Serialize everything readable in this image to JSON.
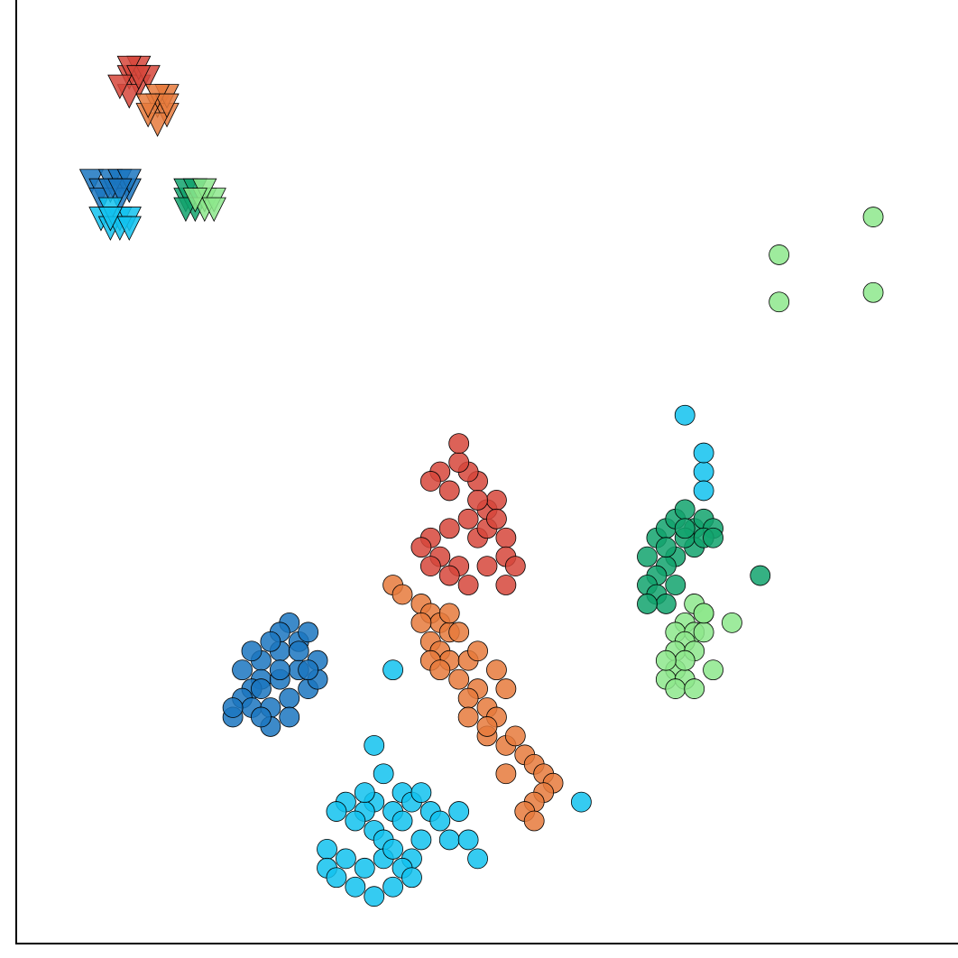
{
  "chart_data": {
    "type": "scatter",
    "title": "",
    "xlabel": "",
    "ylabel": "",
    "xlim": [
      0,
      100
    ],
    "ylim": [
      0,
      100
    ],
    "grid": false,
    "legend": "none",
    "ticks": "none",
    "series": [
      {
        "color": "#d6473b",
        "marker": "circle",
        "cluster_center": [
          47,
          42
        ],
        "spread": [
          3,
          3
        ],
        "points": [
          [
            45,
            41
          ],
          [
            47,
            40
          ],
          [
            49,
            43
          ],
          [
            50,
            44
          ],
          [
            52,
            43
          ],
          [
            48,
            45
          ],
          [
            46,
            44
          ],
          [
            44,
            43
          ],
          [
            50,
            46
          ],
          [
            51,
            47
          ],
          [
            49,
            49
          ],
          [
            48,
            50
          ],
          [
            47,
            51
          ],
          [
            45,
            50
          ],
          [
            44,
            49
          ],
          [
            46,
            48
          ],
          [
            49,
            47
          ],
          [
            51,
            45
          ],
          [
            52,
            41
          ],
          [
            50,
            40
          ],
          [
            48,
            38
          ],
          [
            46,
            39
          ],
          [
            44,
            40
          ],
          [
            43,
            42
          ],
          [
            47,
            53
          ],
          [
            53,
            40
          ],
          [
            52,
            38
          ]
        ]
      },
      {
        "color": "#e67a3c",
        "marker": "circle",
        "cluster_center": [
          47,
          24
        ],
        "spread": [
          6,
          6
        ],
        "points": [
          [
            40,
            38
          ],
          [
            41,
            37
          ],
          [
            43,
            36
          ],
          [
            44,
            35
          ],
          [
            45,
            34
          ],
          [
            46,
            33
          ],
          [
            44,
            32
          ],
          [
            45,
            31
          ],
          [
            46,
            30
          ],
          [
            48,
            30
          ],
          [
            47,
            28
          ],
          [
            49,
            27
          ],
          [
            48,
            26
          ],
          [
            50,
            25
          ],
          [
            51,
            24
          ],
          [
            50,
            22
          ],
          [
            52,
            21
          ],
          [
            54,
            20
          ],
          [
            55,
            19
          ],
          [
            56,
            18
          ],
          [
            57,
            17
          ],
          [
            56,
            16
          ],
          [
            55,
            15
          ],
          [
            54,
            14
          ],
          [
            52,
            27
          ],
          [
            51,
            29
          ],
          [
            47,
            33
          ],
          [
            46,
            35
          ],
          [
            43,
            34
          ],
          [
            44,
            30
          ],
          [
            48,
            24
          ],
          [
            53,
            22
          ],
          [
            55,
            13
          ],
          [
            45,
            29
          ],
          [
            49,
            31
          ],
          [
            50,
            23
          ],
          [
            52,
            18
          ]
        ]
      },
      {
        "color": "#1b75c0",
        "marker": "circle",
        "cluster_center": [
          29,
          29
        ],
        "spread": [
          3,
          3
        ],
        "points": [
          [
            26,
            30
          ],
          [
            28,
            31
          ],
          [
            30,
            32
          ],
          [
            31,
            33
          ],
          [
            29,
            34
          ],
          [
            28,
            33
          ],
          [
            27,
            32
          ],
          [
            26,
            28
          ],
          [
            25,
            27
          ],
          [
            24,
            26
          ],
          [
            23,
            24
          ],
          [
            25,
            25
          ],
          [
            27,
            25
          ],
          [
            29,
            26
          ],
          [
            31,
            27
          ],
          [
            32,
            28
          ],
          [
            30,
            29
          ],
          [
            28,
            28
          ],
          [
            26,
            27
          ],
          [
            24,
            29
          ],
          [
            30,
            31
          ],
          [
            32,
            30
          ],
          [
            29,
            24
          ],
          [
            27,
            23
          ],
          [
            25,
            31
          ],
          [
            31,
            29
          ],
          [
            28,
            29
          ],
          [
            23,
            25
          ],
          [
            26,
            24
          ]
        ]
      },
      {
        "color": "#12c2ef",
        "marker": "circle",
        "cluster_center": [
          40,
          15
        ],
        "spread": [
          4,
          5
        ],
        "points": [
          [
            38,
            21
          ],
          [
            39,
            18
          ],
          [
            41,
            16
          ],
          [
            40,
            14
          ],
          [
            38,
            15
          ],
          [
            37,
            14
          ],
          [
            35,
            15
          ],
          [
            36,
            13
          ],
          [
            38,
            12
          ],
          [
            39,
            11
          ],
          [
            41,
            13
          ],
          [
            42,
            15
          ],
          [
            43,
            16
          ],
          [
            44,
            14
          ],
          [
            45,
            13
          ],
          [
            43,
            11
          ],
          [
            42,
            9
          ],
          [
            41,
            8
          ],
          [
            39,
            9
          ],
          [
            37,
            8
          ],
          [
            35,
            9
          ],
          [
            33,
            10
          ],
          [
            33,
            8
          ],
          [
            34,
            7
          ],
          [
            36,
            6
          ],
          [
            38,
            5
          ],
          [
            40,
            6
          ],
          [
            42,
            7
          ],
          [
            46,
            11
          ],
          [
            47,
            14
          ],
          [
            48,
            11
          ],
          [
            49,
            9
          ],
          [
            60,
            15
          ],
          [
            40,
            29
          ],
          [
            37,
            16
          ],
          [
            34,
            14
          ],
          [
            40,
            10
          ],
          [
            71,
            56
          ],
          [
            73,
            50
          ],
          [
            73,
            52
          ],
          [
            73,
            48
          ]
        ]
      },
      {
        "color": "#12a36d",
        "marker": "circle",
        "cluster_center": [
          70,
          42
        ],
        "spread": [
          2,
          3
        ],
        "points": [
          [
            67,
            41
          ],
          [
            68,
            43
          ],
          [
            69,
            44
          ],
          [
            70,
            45
          ],
          [
            71,
            46
          ],
          [
            72,
            44
          ],
          [
            73,
            45
          ],
          [
            74,
            44
          ],
          [
            72,
            42
          ],
          [
            71,
            43
          ],
          [
            70,
            41
          ],
          [
            69,
            40
          ],
          [
            68,
            39
          ],
          [
            67,
            38
          ],
          [
            68,
            37
          ],
          [
            69,
            36
          ],
          [
            70,
            38
          ],
          [
            67,
            36
          ],
          [
            69,
            42
          ],
          [
            71,
            44
          ],
          [
            73,
            43
          ],
          [
            74,
            43
          ],
          [
            79,
            39
          ]
        ]
      },
      {
        "color": "#8de88c",
        "marker": "circle",
        "cluster_center": [
          71,
          31
        ],
        "spread": [
          2,
          3
        ],
        "points": [
          [
            72,
            36
          ],
          [
            73,
            35
          ],
          [
            71,
            34
          ],
          [
            70,
            33
          ],
          [
            72,
            33
          ],
          [
            73,
            33
          ],
          [
            71,
            32
          ],
          [
            70,
            31
          ],
          [
            72,
            31
          ],
          [
            70,
            29
          ],
          [
            69,
            28
          ],
          [
            71,
            28
          ],
          [
            70,
            27
          ],
          [
            74,
            29
          ],
          [
            72,
            27
          ],
          [
            71,
            30
          ],
          [
            69,
            30
          ],
          [
            76,
            34
          ],
          [
            73,
            35
          ],
          [
            81,
            73
          ],
          [
            81,
            68
          ],
          [
            91,
            77
          ],
          [
            91,
            69
          ]
        ]
      },
      {
        "color": "#d6473b",
        "marker": "triangle-down",
        "cluster_center": [
          12,
          92
        ],
        "spread": [
          1,
          1
        ],
        "points": [
          [
            12,
            92
          ],
          [
            13,
            91
          ],
          [
            13,
            93
          ],
          [
            12,
            90
          ],
          [
            14,
            92
          ],
          [
            12,
            93
          ],
          [
            13,
            92
          ],
          [
            11,
            91
          ]
        ]
      },
      {
        "color": "#e67a3c",
        "marker": "triangle-down",
        "cluster_center": [
          15,
          89
        ],
        "spread": [
          1,
          1
        ],
        "points": [
          [
            15,
            89
          ],
          [
            16,
            88
          ],
          [
            15,
            87
          ],
          [
            16,
            90
          ],
          [
            14,
            88
          ],
          [
            15,
            90
          ],
          [
            16,
            89
          ],
          [
            14,
            89
          ]
        ]
      },
      {
        "color": "#1b75c0",
        "marker": "triangle-down",
        "cluster_center": [
          10,
          80
        ],
        "spread": [
          2,
          1
        ],
        "points": [
          [
            8,
            81
          ],
          [
            9,
            80
          ],
          [
            10,
            81
          ],
          [
            11,
            81
          ],
          [
            12,
            80
          ],
          [
            9,
            79
          ],
          [
            11,
            79
          ],
          [
            12,
            81
          ],
          [
            10,
            80
          ],
          [
            11,
            80
          ]
        ]
      },
      {
        "color": "#12c2ef",
        "marker": "triangle-down",
        "cluster_center": [
          11,
          77
        ],
        "spread": [
          1,
          1
        ],
        "points": [
          [
            9,
            77
          ],
          [
            10,
            76
          ],
          [
            11,
            77
          ],
          [
            12,
            77
          ],
          [
            10,
            78
          ],
          [
            11,
            76
          ],
          [
            12,
            76
          ],
          [
            10,
            77
          ]
        ]
      },
      {
        "color": "#12a36d",
        "marker": "triangle-down",
        "cluster_center": [
          18,
          79
        ],
        "spread": [
          1,
          1
        ],
        "points": [
          [
            18,
            79
          ],
          [
            19,
            79
          ],
          [
            18,
            80
          ],
          [
            19,
            78
          ],
          [
            18,
            78
          ],
          [
            19,
            80
          ]
        ]
      },
      {
        "color": "#8de88c",
        "marker": "triangle-down",
        "cluster_center": [
          20,
          79
        ],
        "spread": [
          1,
          1
        ],
        "points": [
          [
            20,
            79
          ],
          [
            20,
            78
          ],
          [
            21,
            79
          ],
          [
            20,
            80
          ],
          [
            21,
            78
          ],
          [
            19,
            79
          ]
        ]
      }
    ]
  }
}
